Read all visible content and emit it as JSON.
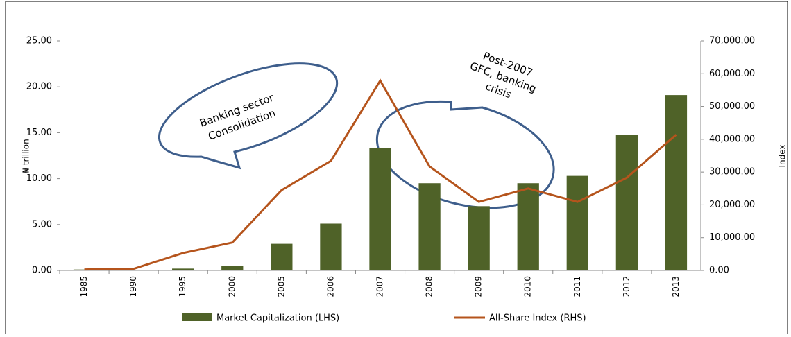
{
  "chart_data": {
    "type": "bar_line",
    "categories": [
      "1985",
      "1990",
      "1995",
      "2000",
      "2005",
      "2006",
      "2007",
      "2008",
      "2009",
      "2010",
      "2011",
      "2012",
      "2013"
    ],
    "series": [
      {
        "name": "Market Capitalization (LHS)",
        "color": "#4f6228",
        "type": "bar",
        "values": [
          0.1,
          0.05,
          0.2,
          0.5,
          2.9,
          5.1,
          13.3,
          9.5,
          7.0,
          9.5,
          10.3,
          14.8,
          19.1
        ]
      },
      {
        "name": "All-Share Index (RHS)",
        "color": "#b5541c",
        "type": "line",
        "axis": "y2",
        "values": [
          300,
          500,
          5300,
          8500,
          24500,
          33400,
          57900,
          31700,
          20900,
          25000,
          20900,
          28300,
          41400
        ]
      }
    ],
    "ylabel": "₦ trillion",
    "y2label": "Index",
    "ylim": [
      0,
      25
    ],
    "yticks": [
      {
        "value": 0,
        "label": "0.00"
      },
      {
        "value": 5,
        "label": "5.00"
      },
      {
        "value": 10,
        "label": "10.00"
      },
      {
        "value": 15,
        "label": "15.00"
      },
      {
        "value": 20,
        "label": "20.00"
      },
      {
        "value": 25,
        "label": "25.00"
      }
    ],
    "y2lim": [
      0,
      70000
    ],
    "y2ticks": [
      {
        "value": 0,
        "label": "0.00"
      },
      {
        "value": 10000,
        "label": "10,000.00"
      },
      {
        "value": 20000,
        "label": "20,000.00"
      },
      {
        "value": 30000,
        "label": "30,000.00"
      },
      {
        "value": 40000,
        "label": "40,000.00"
      },
      {
        "value": 50000,
        "label": "50,000.00"
      },
      {
        "value": 60000,
        "label": "60,000.00"
      },
      {
        "value": 70000,
        "label": "70,000.00"
      }
    ],
    "annotations": [
      [
        "Banking sector",
        "Consolidation"
      ],
      [
        "Post-2007",
        "GFC,  banking",
        "crisis"
      ]
    ]
  }
}
